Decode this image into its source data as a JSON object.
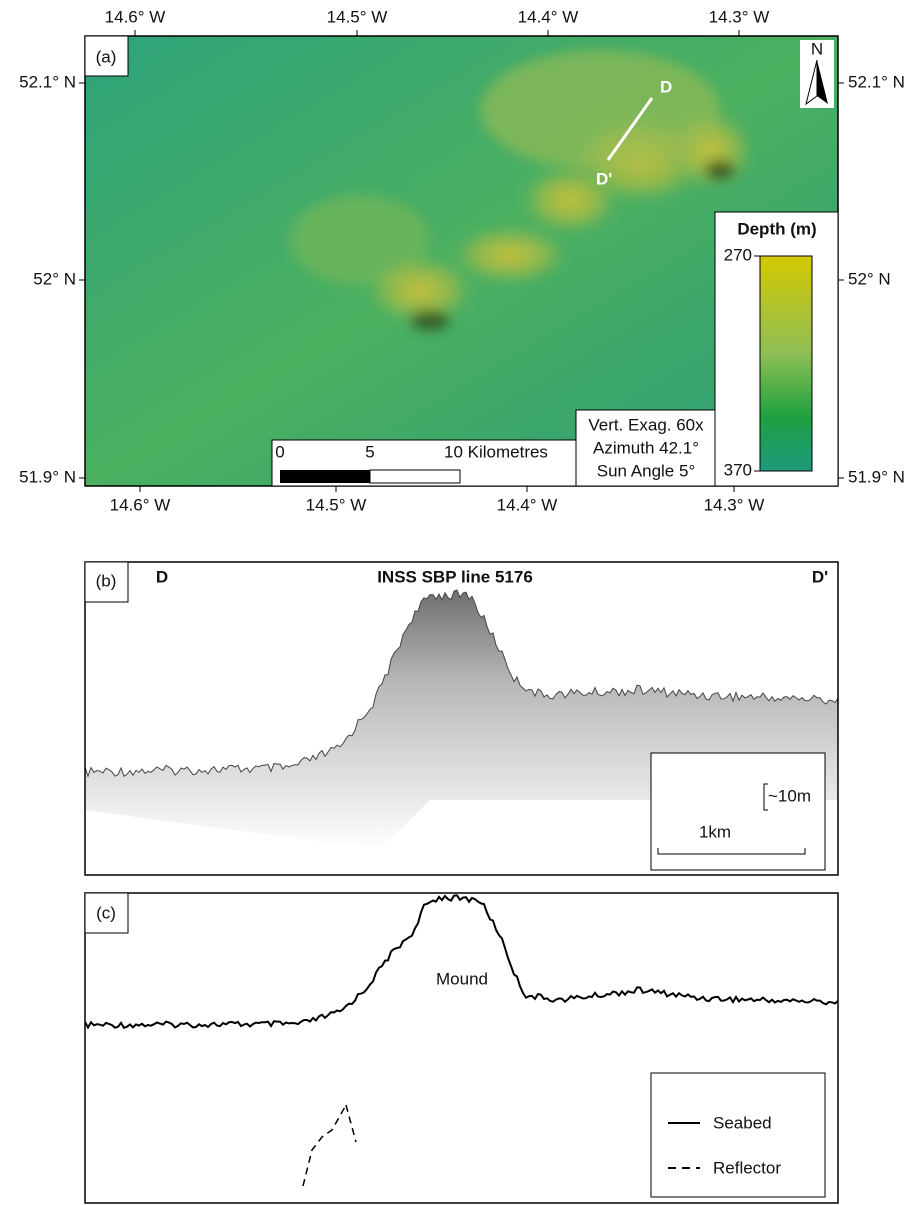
{
  "panels": [
    {
      "label": "(a)",
      "north": "N",
      "lon_ticks": [
        "14.6° W",
        "14.5° W",
        "14.4° W",
        "14.3° W"
      ],
      "lat_ticks": [
        "52.1° N",
        "52° N",
        "51.9° N"
      ],
      "line_labels": [
        "D",
        "D'"
      ],
      "legend": {
        "title": "Depth (m)",
        "ticks": [
          "270",
          "370"
        ]
      },
      "scale_bar": [
        "0",
        "5",
        "10 Kilometres"
      ],
      "info": [
        "Vert. Exag. 60x",
        "Azimuth 42.1°",
        "Sun Angle 5°"
      ]
    },
    {
      "label": "(b)",
      "start": "D",
      "title": "INSS SBP line 5176",
      "end": "D'",
      "scale": [
        "~10m",
        "1km"
      ]
    },
    {
      "label": "(c)",
      "annotation": "Mound",
      "legend": [
        "Seabed",
        "Reflector"
      ]
    }
  ]
}
